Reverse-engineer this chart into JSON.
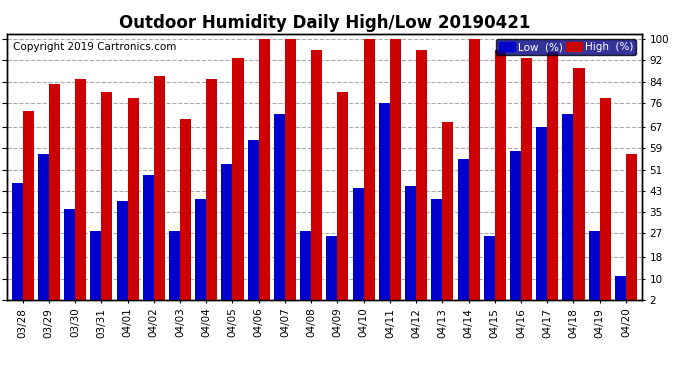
{
  "title": "Outdoor Humidity Daily High/Low 20190421",
  "copyright": "Copyright 2019 Cartronics.com",
  "legend_low": "Low  (%)",
  "legend_high": "High  (%)",
  "categories": [
    "03/28",
    "03/29",
    "03/30",
    "03/31",
    "04/01",
    "04/02",
    "04/03",
    "04/04",
    "04/05",
    "04/06",
    "04/07",
    "04/08",
    "04/09",
    "04/10",
    "04/11",
    "04/12",
    "04/13",
    "04/14",
    "04/15",
    "04/16",
    "04/17",
    "04/18",
    "04/19",
    "04/20"
  ],
  "low_values": [
    46,
    57,
    36,
    28,
    39,
    49,
    28,
    40,
    53,
    62,
    72,
    28,
    26,
    44,
    76,
    45,
    40,
    55,
    26,
    58,
    67,
    72,
    28,
    11
  ],
  "high_values": [
    73,
    83,
    85,
    80,
    78,
    86,
    70,
    85,
    93,
    100,
    100,
    96,
    80,
    100,
    100,
    96,
    69,
    100,
    96,
    93,
    95,
    89,
    78,
    57
  ],
  "low_color": "#0000cc",
  "high_color": "#cc0000",
  "bg_color": "#ffffff",
  "grid_color": "#aaaaaa",
  "ylim": [
    2,
    102
  ],
  "yticks": [
    2,
    10,
    18,
    27,
    35,
    43,
    51,
    59,
    67,
    76,
    84,
    92,
    100
  ],
  "title_fontsize": 12,
  "copyright_fontsize": 7.5,
  "tick_fontsize": 7.5,
  "legend_fontsize": 7.5,
  "bar_width": 0.42
}
